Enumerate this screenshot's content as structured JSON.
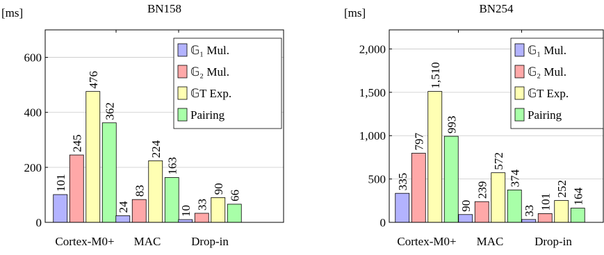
{
  "chart_data": [
    {
      "type": "bar",
      "title": "BN158",
      "y_label": "[ms]",
      "categories": [
        "Cortex-M0+",
        "MAC",
        "Drop-in"
      ],
      "ylim": [
        0,
        700
      ],
      "yticks": [
        0,
        200,
        400,
        600
      ],
      "grid": true,
      "legend": "upper right",
      "series": [
        {
          "name": "𝔾₁ Mul.",
          "color": "#b3b3ff",
          "values": [
            101,
            24,
            10
          ]
        },
        {
          "name": "𝔾₂ Mul.",
          "color": "#ffa8a8",
          "values": [
            245,
            83,
            33
          ]
        },
        {
          "name": "𝔾T Exp.",
          "color": "#ffffb3",
          "values": [
            476,
            224,
            90
          ]
        },
        {
          "name": "Pairing",
          "color": "#a8ffa8",
          "values": [
            362,
            163,
            66
          ]
        }
      ]
    },
    {
      "type": "bar",
      "title": "BN254",
      "y_label": "[ms]",
      "categories": [
        "Cortex-M0+",
        "MAC",
        "Drop-in"
      ],
      "ylim": [
        0,
        2220
      ],
      "yticks": [
        0,
        500,
        {
          "value": 1000,
          "label": "1,000"
        },
        {
          "value": 1500,
          "label": "1,500"
        },
        {
          "value": 2000,
          "label": "2,000"
        }
      ],
      "grid": true,
      "legend": "upper right",
      "series": [
        {
          "name": "𝔾₁ Mul.",
          "color": "#b3b3ff",
          "values": [
            335,
            90,
            33
          ]
        },
        {
          "name": "𝔾₂ Mul.",
          "color": "#ffa8a8",
          "values": [
            797,
            239,
            101
          ]
        },
        {
          "name": "𝔾T Exp.",
          "color": "#ffffb3",
          "values": [
            1510,
            572,
            252
          ],
          "value_labels": [
            "1,510",
            "572",
            "252"
          ]
        },
        {
          "name": "Pairing",
          "color": "#a8ffa8",
          "values": [
            993,
            374,
            164
          ]
        }
      ]
    }
  ]
}
